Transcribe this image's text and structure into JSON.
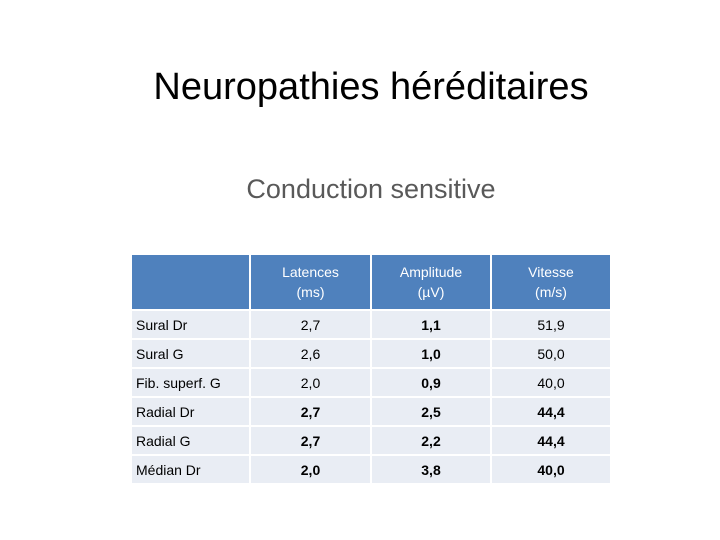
{
  "slide": {
    "title": "Neuropathies héréditaires",
    "subtitle": "Conduction sensitive"
  },
  "table": {
    "headers": [
      {
        "line1": "",
        "line2": ""
      },
      {
        "line1": "Latences",
        "line2": "(ms)"
      },
      {
        "line1": "Amplitude",
        "line2": "(µV)"
      },
      {
        "line1": "Vitesse",
        "line2": "(m/s)"
      }
    ],
    "rows": [
      {
        "label": "Sural Dr",
        "cells": [
          "2,7",
          "1,1",
          "51,9"
        ]
      },
      {
        "label": "Sural G",
        "cells": [
          "2,6",
          "1,0",
          "50,0"
        ]
      },
      {
        "label": "Fib. superf. G",
        "cells": [
          "2,0",
          "0,9",
          "40,0"
        ]
      },
      {
        "label": "Radial Dr",
        "cells": [
          "2,7",
          "2,5",
          "44,4"
        ]
      },
      {
        "label": "Radial G",
        "cells": [
          "2,7",
          "2,2",
          "44,4"
        ]
      },
      {
        "label": "Médian Dr",
        "cells": [
          "2,0",
          "3,8",
          "40,0"
        ]
      }
    ]
  },
  "colors": {
    "header_bg": "#4f81bd",
    "row_bg": "#e9edf4",
    "highlight": "#c00000"
  }
}
